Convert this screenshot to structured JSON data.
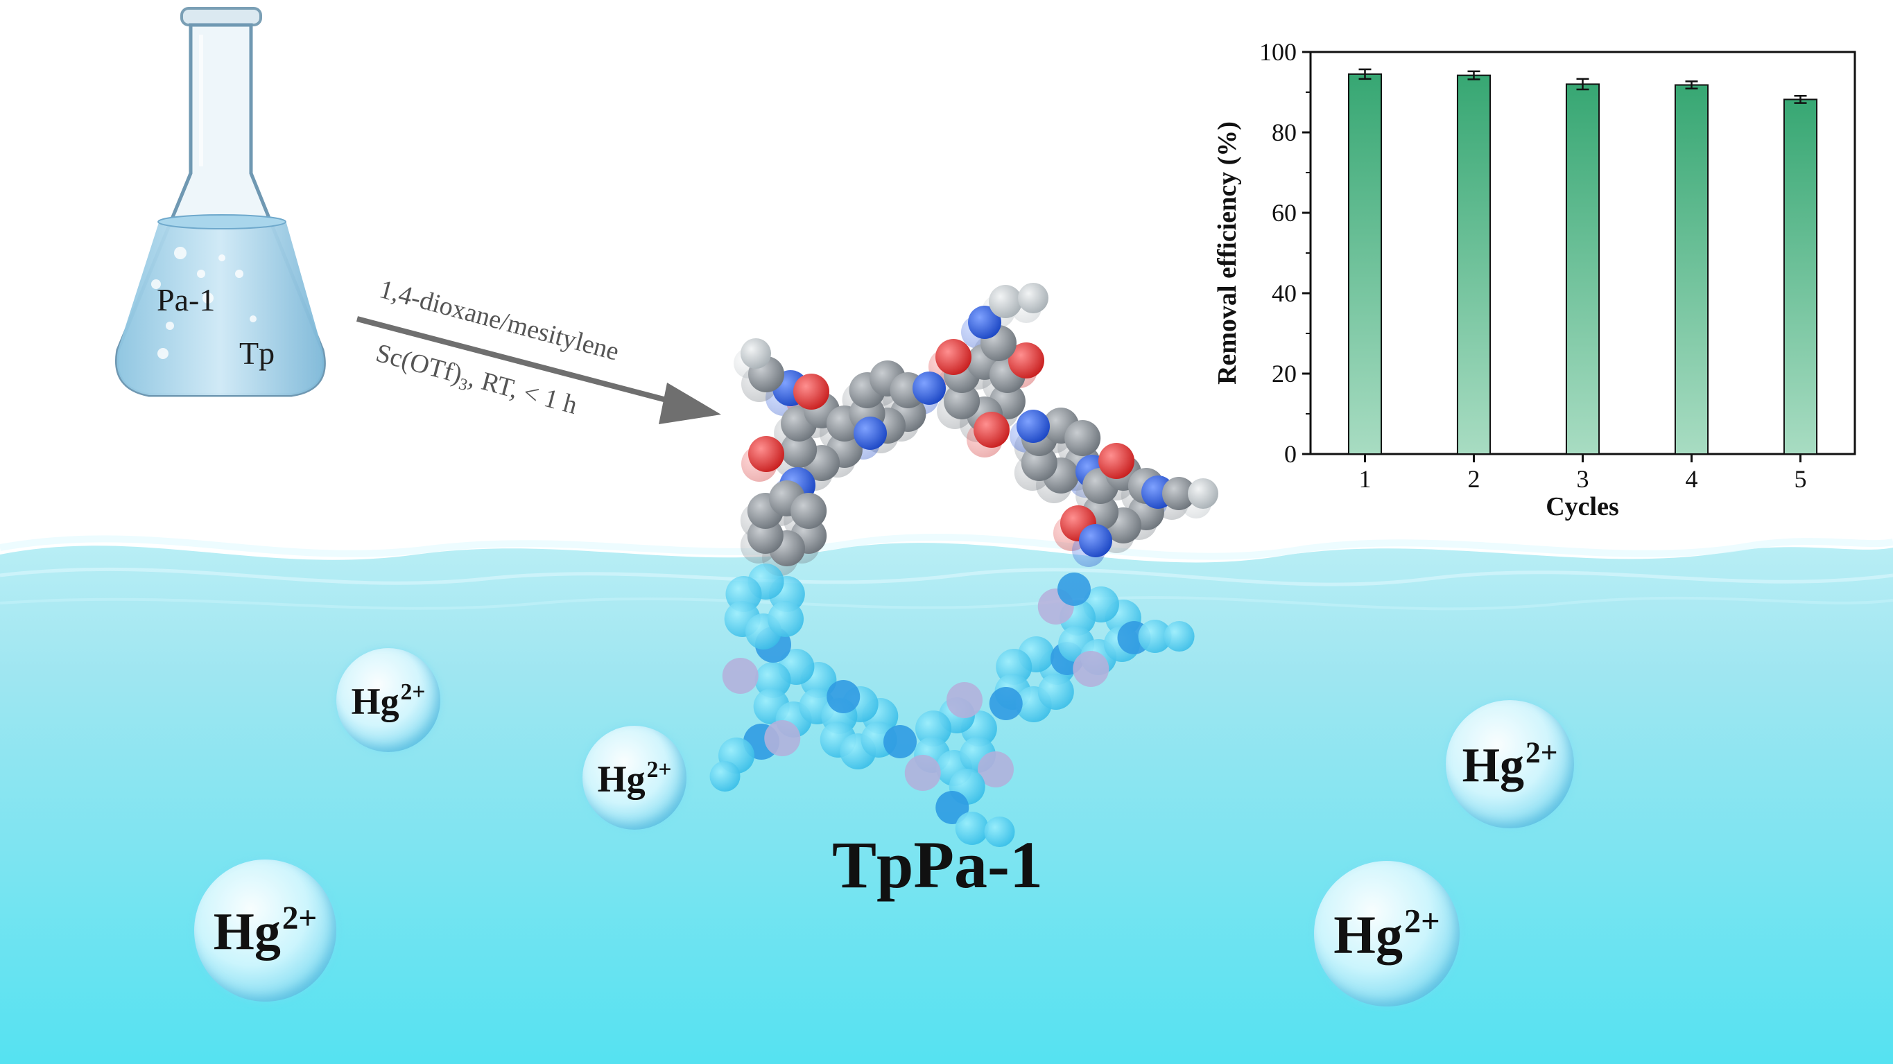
{
  "flask": {
    "reactant_a": "Pa-1",
    "reactant_b": "Tp"
  },
  "arrow": {
    "line1": "1,4-dioxane/mesitylene",
    "line2_main": "Sc(OTf)",
    "line2_sub": "3",
    "line2_rest": ", RT, < 1 h"
  },
  "product": {
    "name": "TpPa-1"
  },
  "ions": {
    "symbol": "Hg",
    "charge": "2+"
  },
  "colors": {
    "water_top": "#aeeaf3",
    "water_bottom": "#57e3f2",
    "bar": "#3aa876",
    "carbon": "#808890",
    "oxygen": "#e23a3a",
    "nitrogen": "#2a5fd6"
  },
  "chart_data": {
    "type": "bar",
    "categories": [
      "1",
      "2",
      "3",
      "4",
      "5"
    ],
    "values": [
      94.5,
      94.2,
      92.0,
      91.8,
      88.2
    ],
    "errors": [
      1.2,
      1.0,
      1.3,
      0.9,
      0.9
    ],
    "xlabel": "Cycles",
    "ylabel": "Removal efficiency (%)",
    "ylim": [
      0,
      100
    ],
    "yticks": [
      0,
      20,
      40,
      60,
      80,
      100
    ],
    "grid": false
  }
}
